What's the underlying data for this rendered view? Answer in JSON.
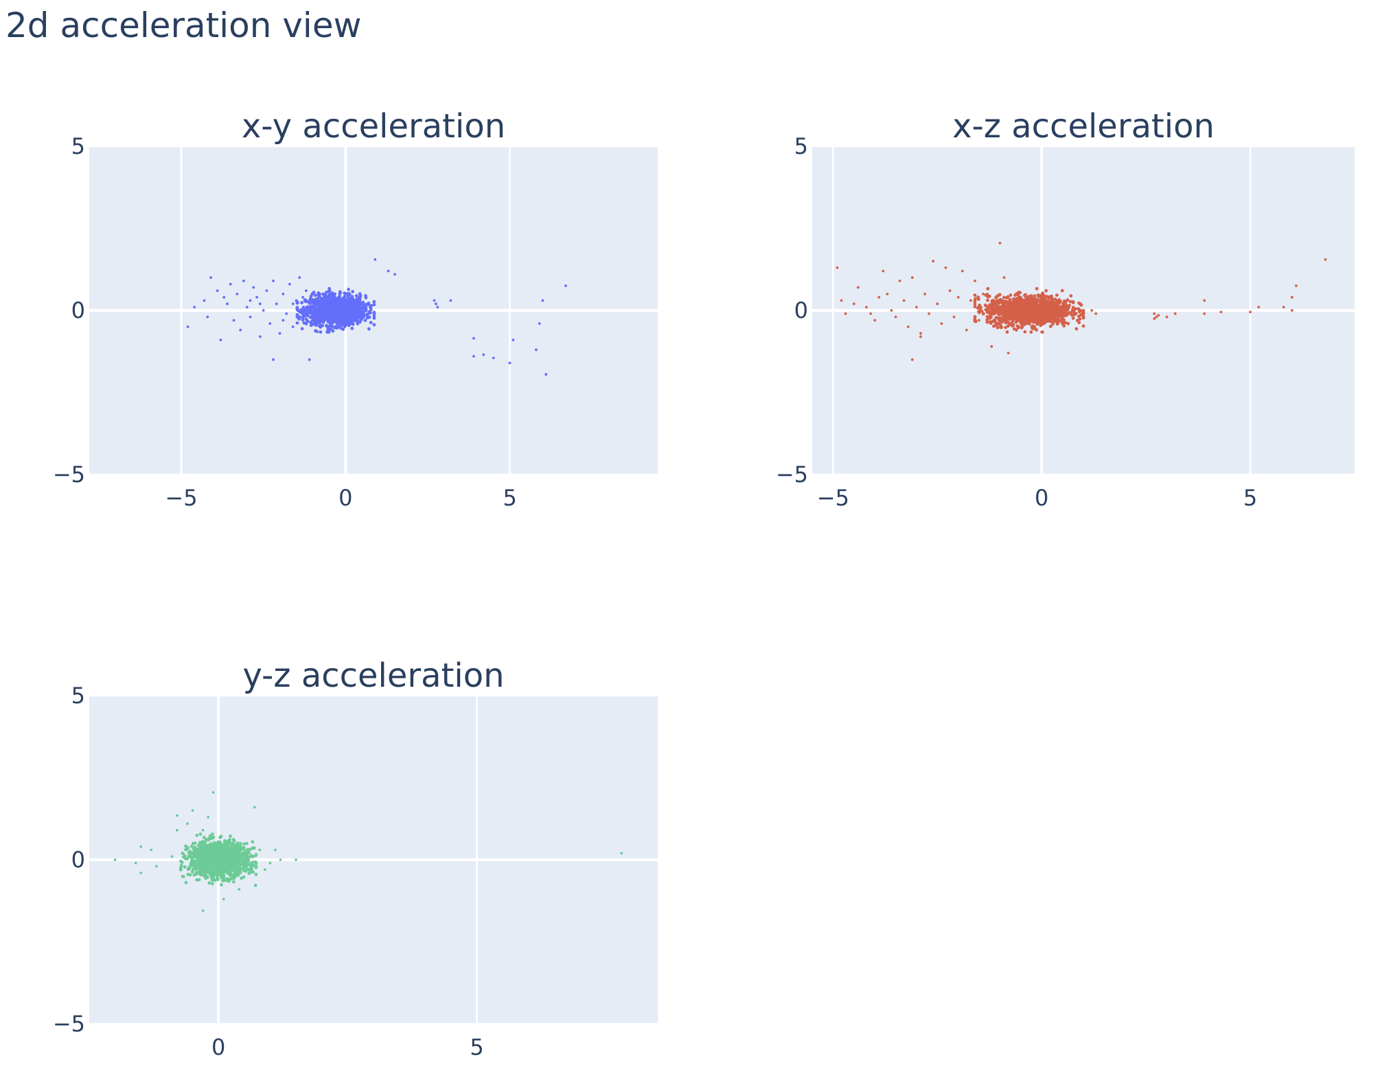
{
  "page": {
    "title": "2d acceleration view"
  },
  "chart_data": [
    {
      "type": "scatter",
      "title": "x-y acceleration",
      "color": "#636efa",
      "xlim": [
        -7.8,
        9.5
      ],
      "ylim": [
        -5,
        5
      ],
      "xticks": [
        -5,
        0,
        5
      ],
      "yticks": [
        -5,
        0,
        5
      ],
      "xtick_labels": [
        "−5",
        "0",
        "5"
      ],
      "ytick_labels": [
        "−5",
        "0",
        "5"
      ],
      "grid": true,
      "cluster": {
        "center": [
          -0.3,
          0.0
        ],
        "spread": [
          0.45,
          0.22
        ],
        "count": 1400
      },
      "sparse_points": [
        [
          -4.8,
          -0.5
        ],
        [
          -4.6,
          0.1
        ],
        [
          -4.3,
          0.3
        ],
        [
          -4.1,
          1.0
        ],
        [
          -3.9,
          0.6
        ],
        [
          -3.8,
          -0.9
        ],
        [
          -3.6,
          0.2
        ],
        [
          -3.5,
          0.8
        ],
        [
          -3.4,
          -0.3
        ],
        [
          -3.3,
          0.5
        ],
        [
          -3.2,
          -0.6
        ],
        [
          -3.1,
          0.9
        ],
        [
          -3.0,
          0.1
        ],
        [
          -2.9,
          -0.2
        ],
        [
          -2.8,
          0.7
        ],
        [
          -2.7,
          0.4
        ],
        [
          -2.6,
          -0.8
        ],
        [
          -2.5,
          0.0
        ],
        [
          -2.4,
          0.6
        ],
        [
          -2.3,
          -0.4
        ],
        [
          -2.2,
          0.9
        ],
        [
          -2.1,
          0.2
        ],
        [
          -2.0,
          -0.7
        ],
        [
          -1.9,
          0.5
        ],
        [
          -1.8,
          -0.1
        ],
        [
          -1.7,
          0.8
        ],
        [
          -1.6,
          -0.5
        ],
        [
          -1.5,
          0.3
        ],
        [
          -1.4,
          1.0
        ],
        [
          -1.3,
          -0.3
        ],
        [
          -1.2,
          0.6
        ],
        [
          -1.1,
          -1.5
        ],
        [
          -2.2,
          -1.5
        ],
        [
          -4.2,
          -0.2
        ],
        [
          -3.7,
          0.4
        ],
        [
          -2.9,
          0.3
        ],
        [
          -1.9,
          -0.3
        ],
        [
          -1.6,
          0.2
        ],
        [
          -1.3,
          0.4
        ],
        [
          -2.6,
          0.2
        ],
        [
          0.9,
          1.55
        ],
        [
          1.3,
          1.2
        ],
        [
          1.5,
          1.1
        ],
        [
          2.7,
          0.3
        ],
        [
          2.8,
          0.1
        ],
        [
          2.75,
          0.2
        ],
        [
          3.2,
          0.3
        ],
        [
          6.7,
          0.75
        ],
        [
          5.9,
          -0.4
        ],
        [
          6.0,
          0.3
        ],
        [
          3.9,
          -0.85
        ],
        [
          3.9,
          -1.4
        ],
        [
          4.2,
          -1.35
        ],
        [
          4.5,
          -1.45
        ],
        [
          5.0,
          -1.6
        ],
        [
          5.1,
          -0.9
        ],
        [
          5.8,
          -1.2
        ],
        [
          6.1,
          -1.95
        ]
      ]
    },
    {
      "type": "scatter",
      "title": "x-z acceleration",
      "color": "#d5604a",
      "xlim": [
        -5.5,
        7.5
      ],
      "ylim": [
        -5,
        5
      ],
      "xticks": [
        -5,
        0,
        5
      ],
      "yticks": [
        -5,
        0,
        5
      ],
      "xtick_labels": [
        "−5",
        "0",
        "5"
      ],
      "ytick_labels": [
        "−5",
        "0",
        "5"
      ],
      "grid": true,
      "cluster": {
        "center": [
          -0.3,
          0.0
        ],
        "spread": [
          0.5,
          0.22
        ],
        "count": 1400
      },
      "sparse_points": [
        [
          -4.9,
          1.3
        ],
        [
          -4.8,
          0.3
        ],
        [
          -4.7,
          -0.1
        ],
        [
          -4.5,
          0.2
        ],
        [
          -4.4,
          0.7
        ],
        [
          -4.2,
          0.1
        ],
        [
          -4.0,
          -0.3
        ],
        [
          -3.9,
          0.4
        ],
        [
          -3.8,
          1.2
        ],
        [
          -3.6,
          0.0
        ],
        [
          -3.5,
          -0.2
        ],
        [
          -3.4,
          0.9
        ],
        [
          -3.3,
          0.3
        ],
        [
          -3.2,
          -0.5
        ],
        [
          -3.1,
          1.0
        ],
        [
          -3.0,
          0.1
        ],
        [
          -2.9,
          -0.8
        ],
        [
          -2.8,
          0.5
        ],
        [
          -2.7,
          -0.1
        ],
        [
          -2.6,
          1.5
        ],
        [
          -2.5,
          0.2
        ],
        [
          -2.4,
          -0.4
        ],
        [
          -2.3,
          1.3
        ],
        [
          -2.2,
          0.6
        ],
        [
          -2.1,
          -0.2
        ],
        [
          -2.0,
          0.4
        ],
        [
          -1.9,
          1.2
        ],
        [
          -1.8,
          -0.6
        ],
        [
          -1.7,
          0.3
        ],
        [
          -1.6,
          0.9
        ],
        [
          -1.5,
          -0.3
        ],
        [
          -1.4,
          0.5
        ],
        [
          -3.1,
          -1.5
        ],
        [
          -2.9,
          -0.7
        ],
        [
          -3.7,
          0.5
        ],
        [
          -4.1,
          -0.1
        ],
        [
          -1.0,
          2.05
        ],
        [
          -0.9,
          1.0
        ],
        [
          -1.2,
          -1.1
        ],
        [
          -0.8,
          -1.3
        ],
        [
          1.2,
          0.0
        ],
        [
          1.3,
          -0.1
        ],
        [
          2.7,
          -0.1
        ],
        [
          2.75,
          -0.2
        ],
        [
          2.8,
          -0.15
        ],
        [
          2.7,
          -0.25
        ],
        [
          3.0,
          -0.2
        ],
        [
          3.2,
          -0.1
        ],
        [
          3.9,
          0.3
        ],
        [
          3.9,
          -0.1
        ],
        [
          4.3,
          -0.05
        ],
        [
          5.0,
          -0.05
        ],
        [
          5.2,
          0.1
        ],
        [
          5.8,
          0.1
        ],
        [
          6.0,
          0.4
        ],
        [
          6.1,
          0.75
        ],
        [
          6.0,
          0.0
        ],
        [
          6.8,
          1.55
        ]
      ]
    },
    {
      "type": "scatter",
      "title": "y-z acceleration",
      "color": "#6ccb96",
      "xlim": [
        -2.5,
        8.5
      ],
      "ylim": [
        -5,
        5
      ],
      "xticks": [
        0,
        5
      ],
      "yticks": [
        -5,
        0,
        5
      ],
      "xtick_labels": [
        "0",
        "5"
      ],
      "ytick_labels": [
        "−5",
        "0",
        "5"
      ],
      "grid": true,
      "cluster": {
        "center": [
          0.0,
          0.0
        ],
        "spread": [
          0.28,
          0.26
        ],
        "count": 1400
      },
      "sparse_points": [
        [
          -2.0,
          0.0
        ],
        [
          -1.5,
          0.4
        ],
        [
          -1.5,
          -0.4
        ],
        [
          -1.3,
          0.3
        ],
        [
          -1.6,
          -0.1
        ],
        [
          -1.2,
          -0.2
        ],
        [
          -0.9,
          0.1
        ],
        [
          -0.8,
          1.35
        ],
        [
          -0.8,
          0.9
        ],
        [
          -0.7,
          -0.5
        ],
        [
          -0.6,
          1.1
        ],
        [
          -0.5,
          1.5
        ],
        [
          -0.3,
          0.9
        ],
        [
          -0.2,
          1.3
        ],
        [
          -0.3,
          -1.55
        ],
        [
          -0.1,
          2.05
        ],
        [
          0.1,
          -1.2
        ],
        [
          0.4,
          -0.9
        ],
        [
          0.7,
          1.6
        ],
        [
          0.8,
          0.3
        ],
        [
          1.0,
          -0.1
        ],
        [
          1.1,
          0.3
        ],
        [
          1.2,
          0.0
        ],
        [
          1.5,
          0.0
        ],
        [
          0.9,
          -0.3
        ],
        [
          7.8,
          0.2
        ]
      ]
    }
  ]
}
